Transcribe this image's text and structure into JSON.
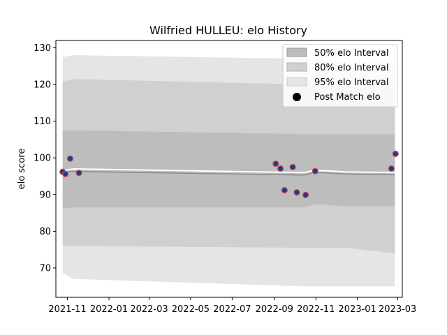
{
  "chart_data": {
    "type": "line",
    "title": "Wilfried HULLEU: elo History",
    "xlabel": "",
    "ylabel": "elo score",
    "x_axis": {
      "ticks": [
        "2021-11",
        "2022-01",
        "2022-03",
        "2022-05",
        "2022-07",
        "2022-09",
        "2022-11",
        "2023-01",
        "2023-03"
      ],
      "range": [
        "2021-10-15",
        "2023-03-08"
      ]
    },
    "y_axis": {
      "ticks": [
        "70",
        "80",
        "90",
        "100",
        "110",
        "120",
        "130"
      ],
      "range": [
        62,
        132
      ]
    },
    "grid": false,
    "legend_position": "top-right",
    "legend": [
      {
        "label": "50% elo Interval",
        "kind": "band50"
      },
      {
        "label": "80% elo Interval",
        "kind": "band80"
      },
      {
        "label": "95% elo Interval",
        "kind": "band95"
      },
      {
        "label": "Post Match elo",
        "kind": "point"
      }
    ],
    "colors": {
      "band95": "#e5e5e5",
      "band80": "#d0d0d0",
      "band50": "#bdbdbd",
      "mean_line": "#ffffff",
      "median_line": "#8c8c8c",
      "point_fill": "#1f3b8c",
      "point_edge": "#d0504a"
    },
    "bands": {
      "dates": [
        "2021-10-25",
        "2021-11-10",
        "2022-10-15",
        "2022-10-28",
        "2022-11-15",
        "2022-12-15",
        "2023-02-25"
      ],
      "upper95": [
        127.5,
        128,
        127,
        127,
        126.5,
        126,
        126
      ],
      "lower95": [
        68.5,
        67,
        65,
        65,
        65,
        65,
        65
      ],
      "upper80": [
        120.8,
        121.5,
        120,
        120,
        119.5,
        119.5,
        119
      ],
      "lower80": [
        76,
        76,
        75.5,
        75.5,
        75.5,
        75.5,
        74
      ],
      "upper50": [
        107.5,
        107.5,
        106.5,
        106.5,
        106.5,
        106.5,
        106.5
      ],
      "lower50": [
        86.3,
        86.5,
        86.5,
        87.3,
        87.3,
        86.8,
        86.8
      ]
    },
    "mean_line": {
      "dates": [
        "2021-10-25",
        "2021-11-10",
        "2022-10-15",
        "2022-10-28",
        "2022-11-15",
        "2022-12-15",
        "2023-02-25"
      ],
      "values": [
        96.5,
        97,
        96,
        96.5,
        96.5,
        96.2,
        96
      ]
    },
    "median_line": {
      "dates": [
        "2021-10-25",
        "2021-11-10",
        "2022-10-15",
        "2022-10-28",
        "2022-11-15",
        "2022-12-15",
        "2023-02-25"
      ],
      "values": [
        96.2,
        96.3,
        95.3,
        96,
        95.9,
        95.6,
        95.4
      ]
    },
    "points": {
      "dates": [
        "2021-10-25",
        "2021-10-29",
        "2021-11-05",
        "2021-11-18",
        "2022-09-03",
        "2022-09-10",
        "2022-09-16",
        "2022-09-28",
        "2022-10-04",
        "2022-10-17",
        "2022-10-31",
        "2023-02-20",
        "2023-02-26"
      ],
      "values": [
        96.2,
        95.6,
        99.8,
        95.9,
        98.4,
        97.1,
        91.2,
        97.5,
        90.6,
        89.9,
        96.4,
        97.1,
        101.1
      ]
    }
  }
}
